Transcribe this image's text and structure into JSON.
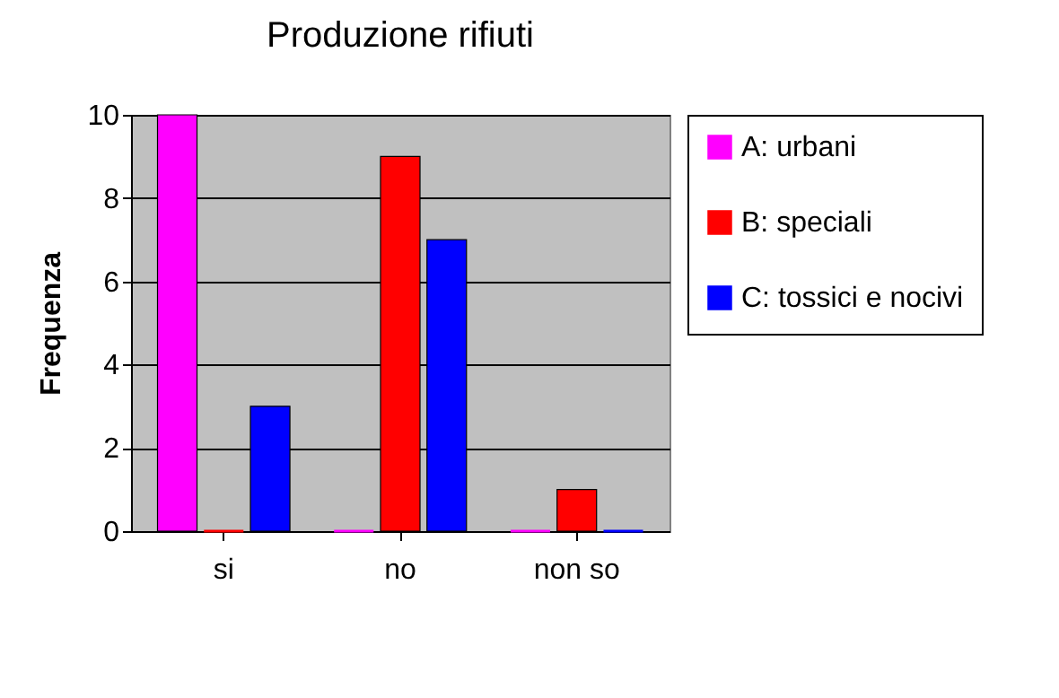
{
  "chart_data": {
    "type": "bar",
    "title": "Produzione rifiuti",
    "ylabel": "Frequenza",
    "categories": [
      "si",
      "no",
      "non so"
    ],
    "series": [
      {
        "name": "A: urbani",
        "color": "#ff00ff",
        "values": [
          10,
          0,
          0
        ]
      },
      {
        "name": "B: speciali",
        "color": "#ff0000",
        "values": [
          0,
          9,
          1
        ]
      },
      {
        "name": "C: tossici e nocivi",
        "color": "#0000ff",
        "values": [
          3,
          7,
          0
        ]
      }
    ],
    "ylim": [
      0,
      10
    ],
    "yticks": [
      0,
      2,
      4,
      6,
      8,
      10
    ],
    "grid": "y",
    "legend": "right"
  }
}
